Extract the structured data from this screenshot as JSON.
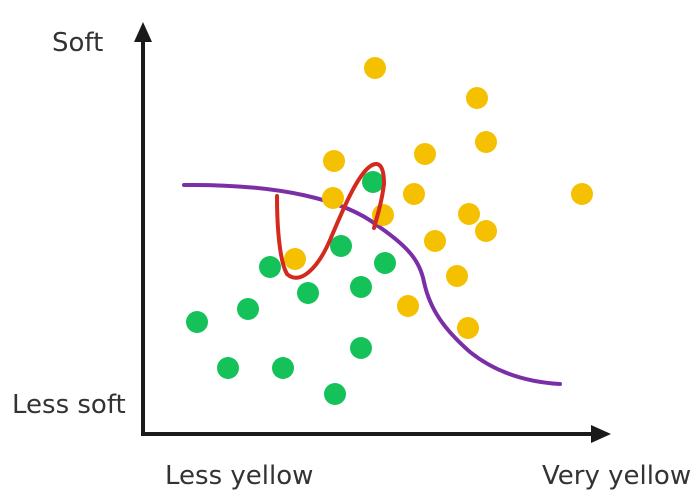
{
  "labels": {
    "y_high": "Soft",
    "y_low": "Less soft",
    "x_low": "Less yellow",
    "x_high": "Very yellow"
  },
  "colors": {
    "axis": "#1a1a1a",
    "class_a": "#f5c000",
    "class_b": "#15c25a",
    "boundary_smooth": "#7b2fa6",
    "boundary_overfit": "#d42a1e"
  },
  "classes": {
    "yellow_points": [
      [
        375,
        68
      ],
      [
        477,
        98
      ],
      [
        486,
        142
      ],
      [
        334,
        161
      ],
      [
        425,
        154
      ],
      [
        333,
        198
      ],
      [
        383,
        215
      ],
      [
        414,
        194
      ],
      [
        469,
        214
      ],
      [
        486,
        231
      ],
      [
        435,
        241
      ],
      [
        582,
        194
      ],
      [
        457,
        276
      ],
      [
        408,
        306
      ],
      [
        468,
        328
      ],
      [
        295,
        259
      ]
    ],
    "green_points": [
      [
        373,
        182
      ],
      [
        341,
        246
      ],
      [
        270,
        267
      ],
      [
        385,
        263
      ],
      [
        308,
        293
      ],
      [
        361,
        287
      ],
      [
        248,
        309
      ],
      [
        197,
        322
      ],
      [
        361,
        348
      ],
      [
        228,
        368
      ],
      [
        283,
        368
      ],
      [
        335,
        394
      ]
    ]
  }
}
